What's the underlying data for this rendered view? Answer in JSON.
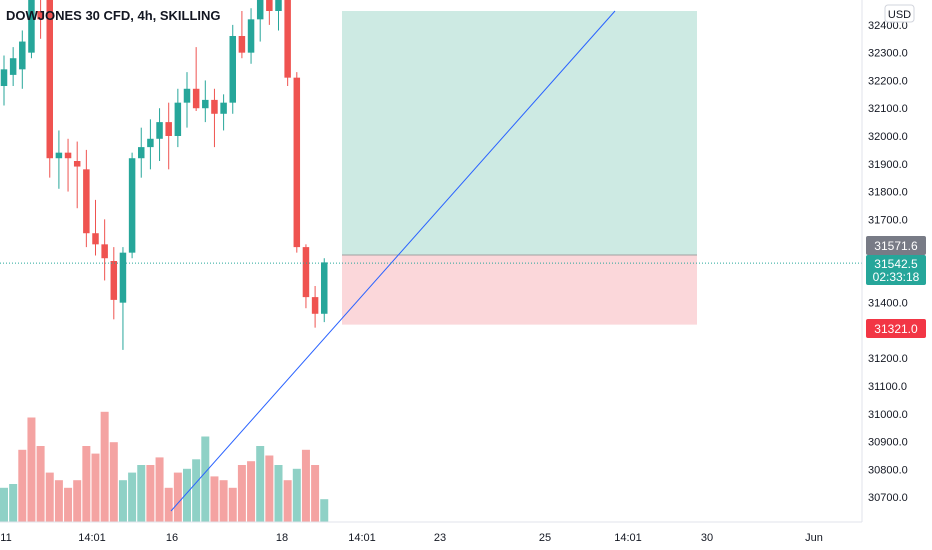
{
  "header": {
    "title": "DOWJONES 30 CFD, 4h, SKILLING"
  },
  "currency_button": "USD",
  "price_axis": {
    "ticks": [
      "30700.0",
      "30800.0",
      "30900.0",
      "31000.0",
      "31100.0",
      "31200.0",
      "31300.0",
      "31400.0",
      "31500.0",
      "31600.0",
      "31700.0",
      "31800.0",
      "31900.0",
      "32000.0",
      "32100.0",
      "32200.0",
      "32300.0",
      "32400.0"
    ]
  },
  "time_axis": {
    "ticks": [
      "11",
      "14:01",
      "16",
      "18",
      "14:01",
      "23",
      "25",
      "14:01",
      "30",
      "Jun"
    ]
  },
  "labels": {
    "target_price": "31571.6",
    "last_price": "31542.5",
    "countdown": "02:33:18",
    "stop_price": "31321.0"
  },
  "colors": {
    "up": "#26a69a",
    "down": "#ef5350",
    "vol_up": "#8fd1c6",
    "vol_down": "#f4a3a2",
    "profit_zone": "#cdeae3",
    "loss_zone": "#fbd7da",
    "trendline": "#2962ff",
    "target_label": "#787b86",
    "stop_label": "#f23645"
  },
  "chart_data": {
    "type": "candlestick",
    "title": "DOWJONES 30 CFD, 4h, SKILLING",
    "ylim": [
      30650,
      32450
    ],
    "grid": false,
    "candles": [
      {
        "o": 32180,
        "h": 32290,
        "l": 32110,
        "c": 32240
      },
      {
        "o": 32220,
        "h": 32320,
        "l": 32180,
        "c": 32280
      },
      {
        "o": 32240,
        "h": 32380,
        "l": 32170,
        "c": 32340
      },
      {
        "o": 32300,
        "h": 32550,
        "l": 32280,
        "c": 32500
      },
      {
        "o": 32450,
        "h": 32550,
        "l": 32350,
        "c": 32420
      },
      {
        "o": 32500,
        "h": 32550,
        "l": 31850,
        "c": 31920
      },
      {
        "o": 31920,
        "h": 32020,
        "l": 31810,
        "c": 31940
      },
      {
        "o": 31940,
        "h": 31990,
        "l": 31800,
        "c": 31920
      },
      {
        "o": 31910,
        "h": 31980,
        "l": 31740,
        "c": 31890
      },
      {
        "o": 31880,
        "h": 31950,
        "l": 31600,
        "c": 31650
      },
      {
        "o": 31650,
        "h": 31770,
        "l": 31570,
        "c": 31610
      },
      {
        "o": 31610,
        "h": 31700,
        "l": 31480,
        "c": 31560
      },
      {
        "o": 31550,
        "h": 31600,
        "l": 31340,
        "c": 31410
      },
      {
        "o": 31400,
        "h": 31600,
        "l": 31230,
        "c": 31580
      },
      {
        "o": 31580,
        "h": 31940,
        "l": 31560,
        "c": 31920
      },
      {
        "o": 31920,
        "h": 32030,
        "l": 31850,
        "c": 31960
      },
      {
        "o": 31960,
        "h": 32060,
        "l": 31880,
        "c": 31990
      },
      {
        "o": 31990,
        "h": 32100,
        "l": 31910,
        "c": 32050
      },
      {
        "o": 32050,
        "h": 32120,
        "l": 31880,
        "c": 32000
      },
      {
        "o": 32000,
        "h": 32170,
        "l": 31960,
        "c": 32120
      },
      {
        "o": 32120,
        "h": 32230,
        "l": 32030,
        "c": 32170
      },
      {
        "o": 32170,
        "h": 32320,
        "l": 32090,
        "c": 32100
      },
      {
        "o": 32100,
        "h": 32200,
        "l": 32050,
        "c": 32130
      },
      {
        "o": 32130,
        "h": 32170,
        "l": 31960,
        "c": 32080
      },
      {
        "o": 32080,
        "h": 32150,
        "l": 32020,
        "c": 32120
      },
      {
        "o": 32120,
        "h": 32400,
        "l": 32080,
        "c": 32360
      },
      {
        "o": 32360,
        "h": 32450,
        "l": 32280,
        "c": 32300
      },
      {
        "o": 32300,
        "h": 32460,
        "l": 32260,
        "c": 32420
      },
      {
        "o": 32420,
        "h": 32560,
        "l": 32340,
        "c": 32520
      },
      {
        "o": 32520,
        "h": 32560,
        "l": 32400,
        "c": 32450
      },
      {
        "o": 32450,
        "h": 32550,
        "l": 32380,
        "c": 32500
      },
      {
        "o": 32500,
        "h": 32560,
        "l": 32180,
        "c": 32210
      },
      {
        "o": 32210,
        "h": 32230,
        "l": 31580,
        "c": 31600
      },
      {
        "o": 31600,
        "h": 31610,
        "l": 31380,
        "c": 31420
      },
      {
        "o": 31420,
        "h": 31460,
        "l": 31310,
        "c": 31360
      },
      {
        "o": 31360,
        "h": 31560,
        "l": 31330,
        "c": 31545
      }
    ],
    "volume": [
      {
        "v": 18,
        "up": true
      },
      {
        "v": 20,
        "up": true
      },
      {
        "v": 38,
        "up": false
      },
      {
        "v": 55,
        "up": false
      },
      {
        "v": 40,
        "up": false
      },
      {
        "v": 26,
        "up": false
      },
      {
        "v": 22,
        "up": false
      },
      {
        "v": 18,
        "up": false
      },
      {
        "v": 22,
        "up": false
      },
      {
        "v": 40,
        "up": false
      },
      {
        "v": 36,
        "up": false
      },
      {
        "v": 58,
        "up": false
      },
      {
        "v": 42,
        "up": false
      },
      {
        "v": 22,
        "up": true
      },
      {
        "v": 26,
        "up": true
      },
      {
        "v": 30,
        "up": true
      },
      {
        "v": 30,
        "up": false
      },
      {
        "v": 34,
        "up": false
      },
      {
        "v": 18,
        "up": false
      },
      {
        "v": 26,
        "up": false
      },
      {
        "v": 28,
        "up": true
      },
      {
        "v": 33,
        "up": true
      },
      {
        "v": 45,
        "up": true
      },
      {
        "v": 24,
        "up": false
      },
      {
        "v": 22,
        "up": false
      },
      {
        "v": 18,
        "up": false
      },
      {
        "v": 30,
        "up": false
      },
      {
        "v": 32,
        "up": false
      },
      {
        "v": 40,
        "up": true
      },
      {
        "v": 35,
        "up": false
      },
      {
        "v": 30,
        "up": true
      },
      {
        "v": 22,
        "up": false
      },
      {
        "v": 28,
        "up": true
      },
      {
        "v": 38,
        "up": false
      },
      {
        "v": 30,
        "up": false
      },
      {
        "v": 12,
        "up": true
      }
    ],
    "position": {
      "type": "long",
      "entry": 31571.6,
      "stop": 31321.0,
      "target": 32450
    },
    "trendline": {
      "from_price": 30650,
      "to_price": 32450
    }
  }
}
